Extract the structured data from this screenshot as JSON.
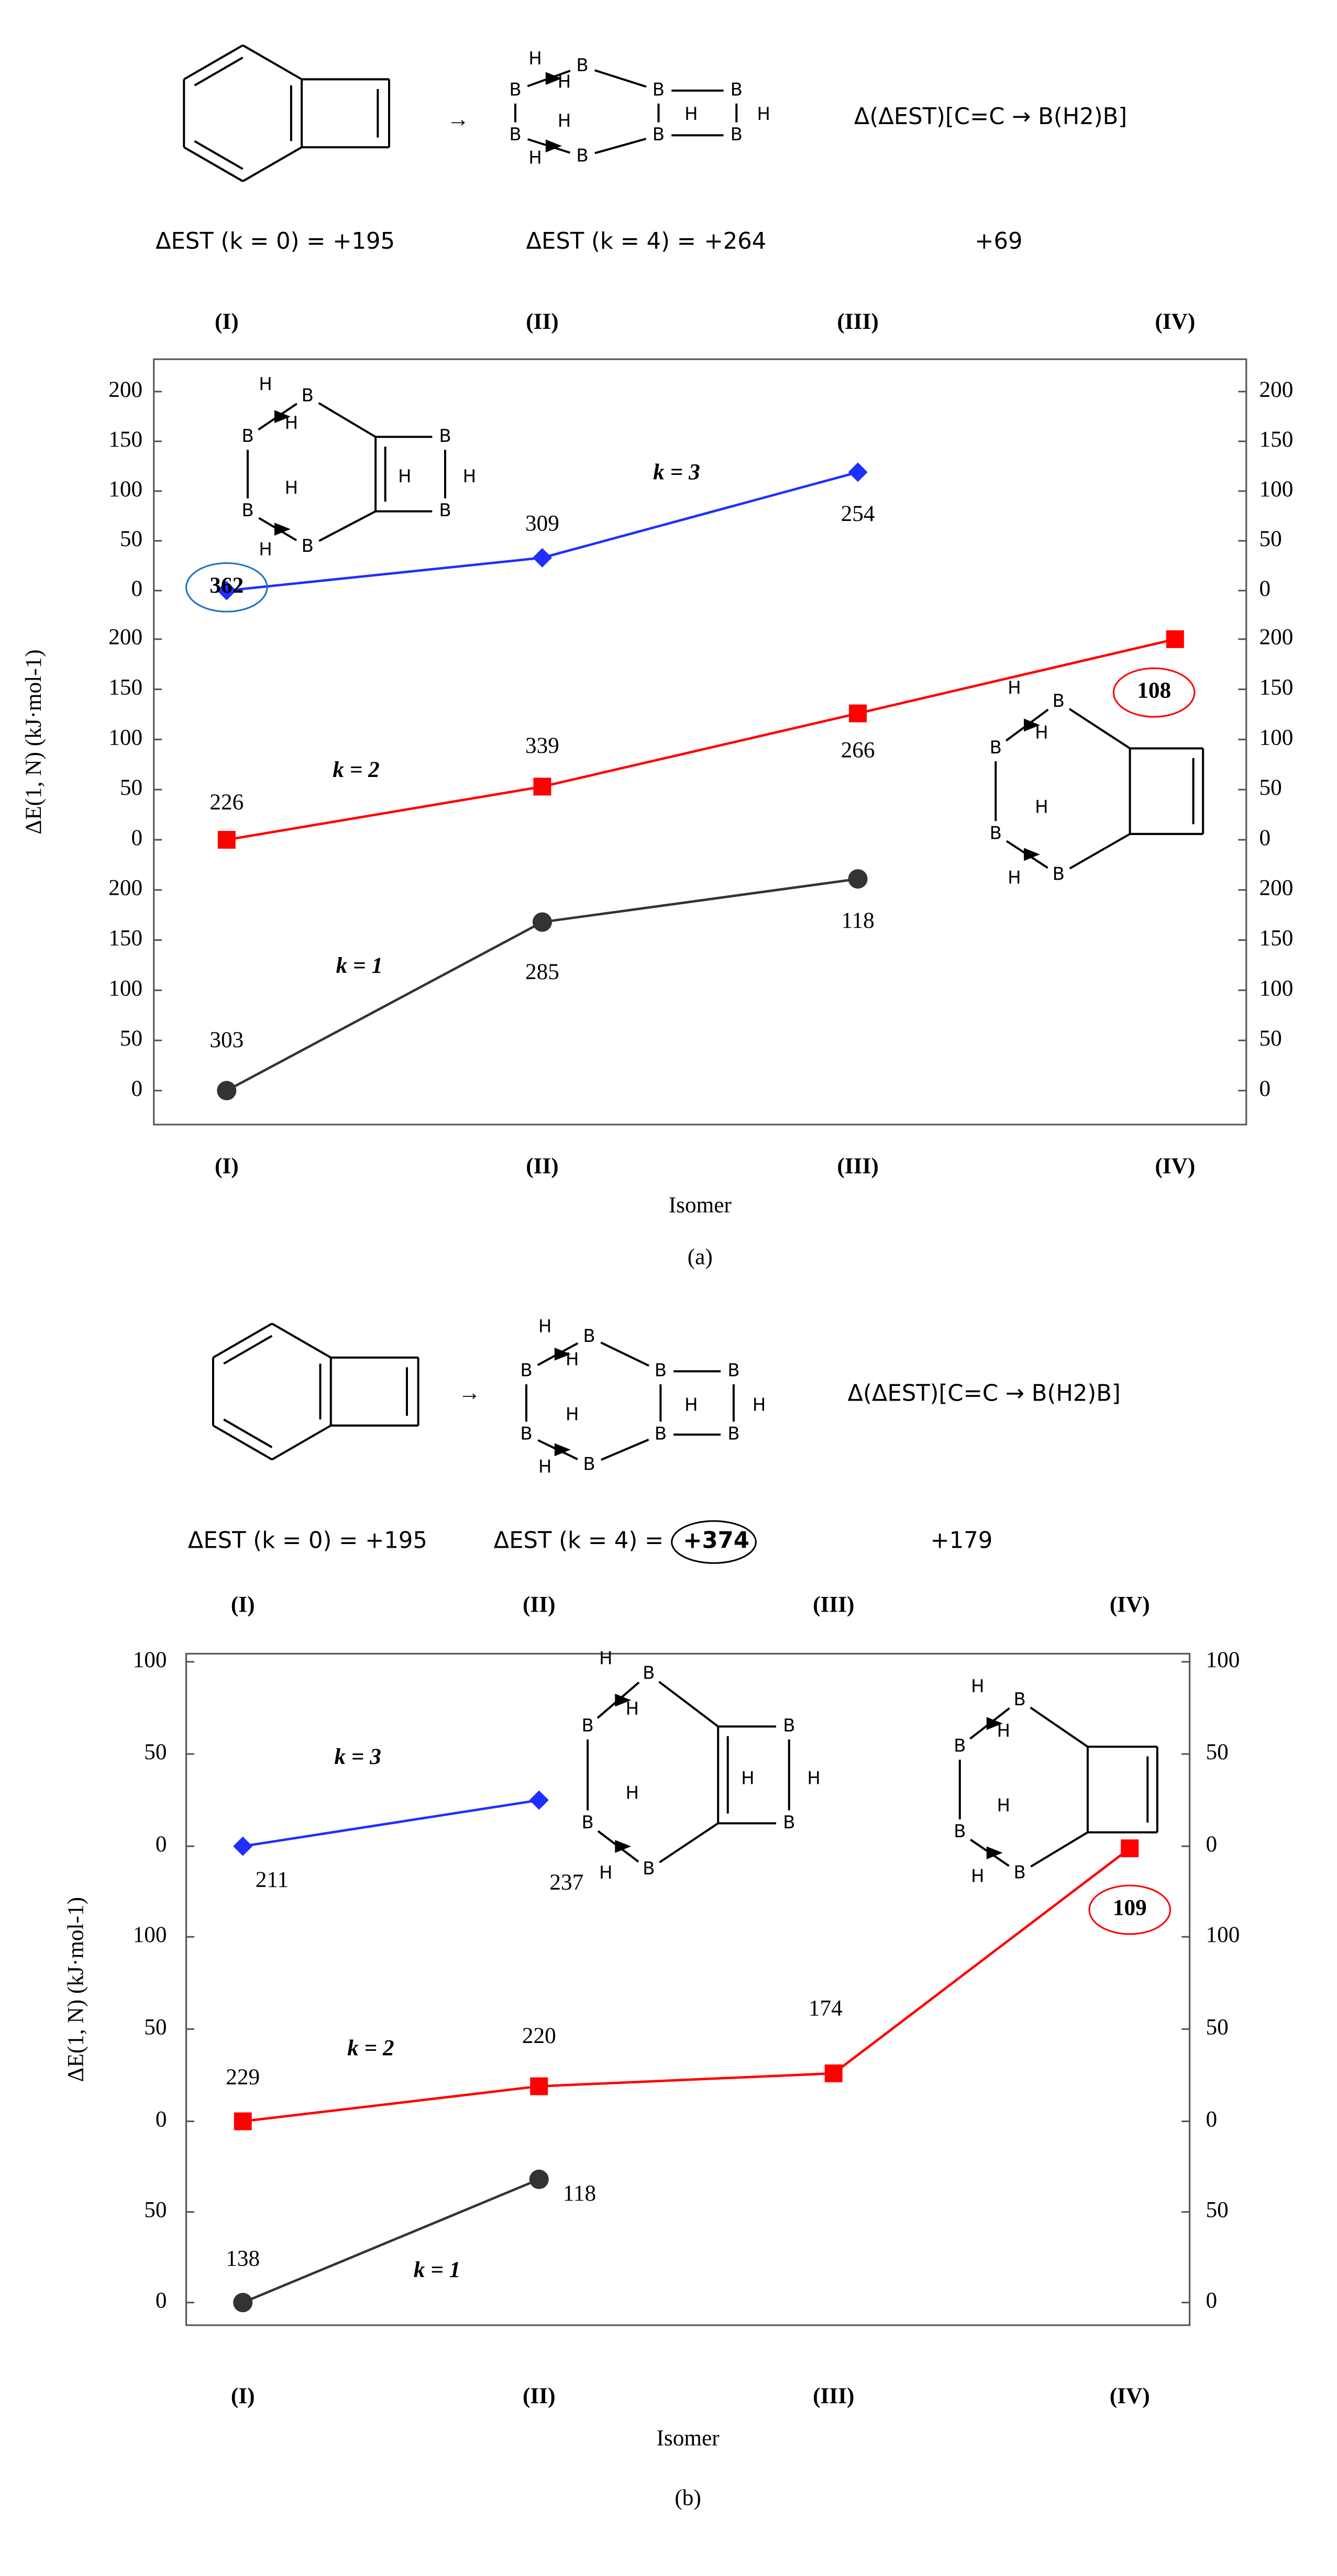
{
  "atoms": {
    "boron": "B",
    "hydrogen": "H"
  },
  "arrow": "→",
  "chart_data": [
    {
      "type": "line",
      "panel_label": "(a)",
      "header": {
        "delta_est_k0": "ΔEST (k = 0) = +195",
        "delta_est_k4_prefix": "ΔEST (k = 4) =",
        "delta_est_k4_value": "+264",
        "k4_circled": false,
        "reaction_label": "Δ(ΔEST)[C=C → B(H2)B]",
        "delta_delta": "+69"
      },
      "categories": [
        "(I)",
        "(II)",
        "(III)",
        "(IV)"
      ],
      "x_label": "Isomer",
      "y_label": "ΔE(1, N) (kJ·mol-1)",
      "series": [
        {
          "name": "k = 1",
          "color": "#333333",
          "label_color": "#000000",
          "marker": "circle",
          "values": [
            0,
            168,
            211,
            null
          ],
          "point_labels": [
            303,
            285,
            118,
            null
          ],
          "circled_label": null,
          "ylim": [
            0,
            200
          ],
          "yticks": [
            0,
            50,
            100,
            150,
            200
          ]
        },
        {
          "name": "k = 2",
          "color": "#ff0000",
          "label_color": "#ff0000",
          "marker": "square",
          "values": [
            0,
            53,
            126,
            200
          ],
          "point_labels": [
            226,
            339,
            266,
            108
          ],
          "circled_label": 3,
          "ylim": [
            0,
            200
          ],
          "yticks": [
            0,
            50,
            100,
            150,
            200
          ]
        },
        {
          "name": "k = 3",
          "color": "#1f2fff",
          "label_color": "#1a73c8",
          "marker": "diamond",
          "values": [
            0,
            33,
            119,
            null
          ],
          "point_labels": [
            362,
            309,
            254,
            null
          ],
          "circled_label": 0,
          "ylim": [
            0,
            200
          ],
          "yticks": [
            0,
            50,
            100,
            150,
            200
          ]
        }
      ]
    },
    {
      "type": "line",
      "panel_label": "(b)",
      "header": {
        "delta_est_k0": "ΔEST (k = 0) = +195",
        "delta_est_k4_prefix": "ΔEST (k = 4) =",
        "delta_est_k4_value": "+374",
        "k4_circled": true,
        "reaction_label": "Δ(ΔEST)[C=C → B(H2)B]",
        "delta_delta": "+179"
      },
      "categories": [
        "(I)",
        "(II)",
        "(III)",
        "(IV)"
      ],
      "x_label": "Isomer",
      "y_label": "ΔE(1, N) (kJ·mol-1)",
      "series": [
        {
          "name": "k = 1",
          "color": "#333333",
          "label_color": "#000000",
          "marker": "circle",
          "values": [
            0,
            68,
            null,
            null
          ],
          "point_labels": [
            138,
            118,
            null,
            null
          ],
          "circled_label": null,
          "ylim": [
            0,
            100
          ],
          "yticks": [
            0,
            50
          ]
        },
        {
          "name": "k = 2",
          "color": "#ff0000",
          "label_color": "#ff0000",
          "marker": "square",
          "values": [
            0,
            19,
            26,
            148
          ],
          "point_labels": [
            229,
            220,
            174,
            109
          ],
          "circled_label": 3,
          "ylim": [
            0,
            100
          ],
          "yticks": [
            0,
            50,
            100
          ]
        },
        {
          "name": "k = 3",
          "color": "#1f2fff",
          "label_color": "#1a73c8",
          "marker": "diamond",
          "values": [
            0,
            25,
            null,
            null
          ],
          "point_labels": [
            211,
            237,
            null,
            null
          ],
          "circled_label": null,
          "ylim": [
            0,
            100
          ],
          "yticks": [
            0,
            50,
            100
          ]
        }
      ]
    }
  ]
}
